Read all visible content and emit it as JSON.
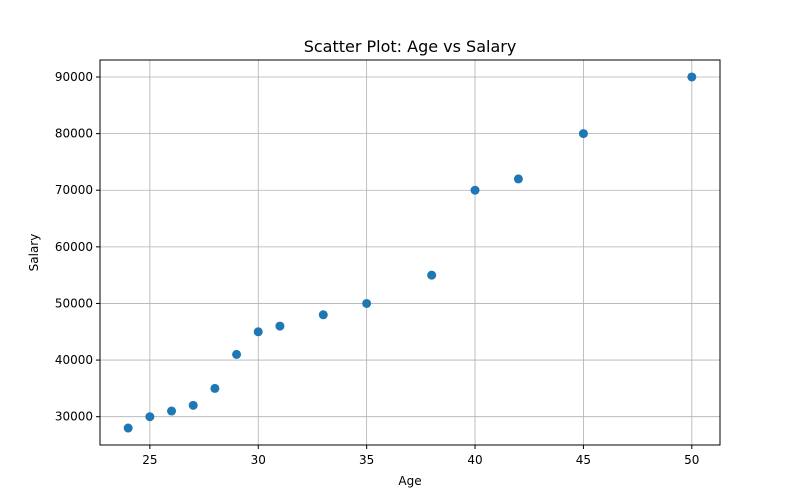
{
  "chart_data": {
    "type": "scatter",
    "title": "Scatter Plot: Age vs Salary",
    "xlabel": "Age",
    "ylabel": "Salary",
    "xlim": [
      22.7,
      51.3
    ],
    "ylim": [
      25000,
      93000
    ],
    "xticks": [
      25,
      30,
      35,
      40,
      45,
      50
    ],
    "yticks": [
      30000,
      40000,
      50000,
      60000,
      70000,
      80000,
      90000
    ],
    "grid": true,
    "marker_color": "#1f77b4",
    "points": [
      {
        "x": 24,
        "y": 28000
      },
      {
        "x": 25,
        "y": 30000
      },
      {
        "x": 26,
        "y": 31000
      },
      {
        "x": 27,
        "y": 32000
      },
      {
        "x": 28,
        "y": 35000
      },
      {
        "x": 29,
        "y": 41000
      },
      {
        "x": 30,
        "y": 45000
      },
      {
        "x": 31,
        "y": 46000
      },
      {
        "x": 33,
        "y": 48000
      },
      {
        "x": 35,
        "y": 50000
      },
      {
        "x": 38,
        "y": 55000
      },
      {
        "x": 40,
        "y": 70000
      },
      {
        "x": 42,
        "y": 72000
      },
      {
        "x": 45,
        "y": 80000
      },
      {
        "x": 50,
        "y": 90000
      }
    ]
  }
}
